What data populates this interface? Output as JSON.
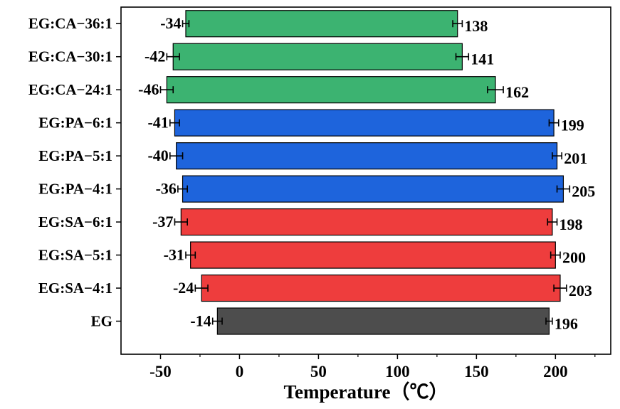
{
  "chart_data": {
    "type": "bar",
    "orientation": "horizontal",
    "floating": true,
    "xlabel": "Temperature（℃）",
    "xlim": [
      -75,
      235
    ],
    "xticks": [
      -50,
      0,
      50,
      100,
      150,
      200
    ],
    "xtick_labels": [
      "-50",
      "0",
      "50",
      "100",
      "150",
      "200"
    ],
    "categories": [
      "EG:CA−36:1",
      "EG:CA−30:1",
      "EG:CA−24:1",
      "EG:PA−6:1",
      "EG:PA−5:1",
      "EG:PA−4:1",
      "EG:SA−6:1",
      "EG:SA−5:1",
      "EG:SA−4:1",
      "EG"
    ],
    "low": [
      -34,
      -42,
      -46,
      -41,
      -40,
      -36,
      -37,
      -31,
      -24,
      -14
    ],
    "high": [
      138,
      141,
      162,
      199,
      201,
      205,
      198,
      200,
      203,
      196
    ],
    "low_labels": [
      "-34",
      "-42",
      "-46",
      "-41",
      "-40",
      "-36",
      "-37",
      "-31",
      "-24",
      "-14"
    ],
    "high_labels": [
      "138",
      "141",
      "162",
      "199",
      "201",
      "205",
      "198",
      "200",
      "203",
      "196"
    ],
    "low_err": [
      2,
      4,
      4,
      3,
      4,
      3,
      4,
      3,
      4,
      3
    ],
    "high_err": [
      3,
      4,
      5,
      3,
      3,
      4,
      3,
      3,
      4,
      2
    ],
    "colors": [
      "#3cb371",
      "#3cb371",
      "#3cb371",
      "#1e64dc",
      "#1e64dc",
      "#1e64dc",
      "#ee3d3d",
      "#ee3d3d",
      "#ee3d3d",
      "#4d4d4d"
    ]
  }
}
